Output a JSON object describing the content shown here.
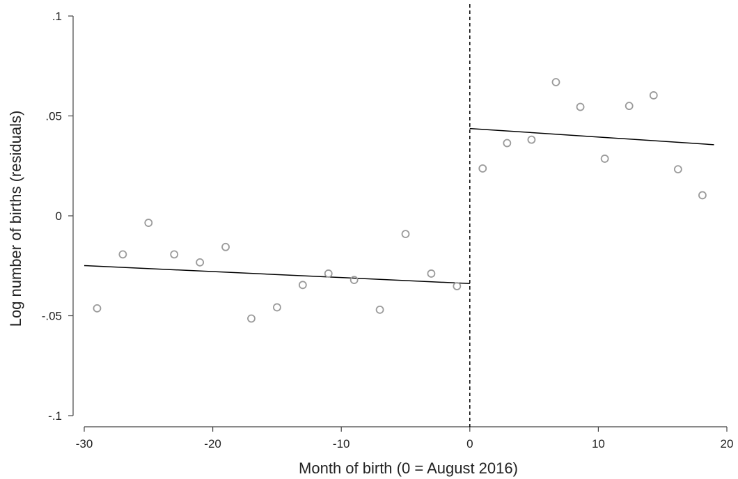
{
  "chart_data": {
    "type": "scatter",
    "title": "",
    "xlabel": "Month of birth (0 = August 2016)",
    "ylabel": "Log number of births (residuals)",
    "xlim": [
      -30,
      20
    ],
    "ylim": [
      -0.1,
      0.1
    ],
    "x_ticks": [
      -30,
      -20,
      -10,
      0,
      10,
      20
    ],
    "x_tick_labels": [
      "-30",
      "-20",
      "-10",
      "0",
      "10",
      "20"
    ],
    "y_ticks": [
      -0.1,
      -0.05,
      0,
      0.05,
      0.1
    ],
    "y_tick_labels": [
      "-.1",
      "-.05",
      "0",
      ".05",
      ".1"
    ],
    "grid": false,
    "cutoff_x": 0,
    "points": [
      {
        "x": -29,
        "y": -0.0463
      },
      {
        "x": -27,
        "y": -0.0193
      },
      {
        "x": -25,
        "y": -0.0035
      },
      {
        "x": -23,
        "y": -0.0193
      },
      {
        "x": -21,
        "y": -0.0233
      },
      {
        "x": -19,
        "y": -0.0156
      },
      {
        "x": -17,
        "y": -0.0514
      },
      {
        "x": -15,
        "y": -0.0458
      },
      {
        "x": -13,
        "y": -0.0346
      },
      {
        "x": -11,
        "y": -0.0289
      },
      {
        "x": -9,
        "y": -0.0321
      },
      {
        "x": -7,
        "y": -0.047
      },
      {
        "x": -5,
        "y": -0.0091
      },
      {
        "x": -3,
        "y": -0.0289
      },
      {
        "x": -1,
        "y": -0.0352
      },
      {
        "x": 1,
        "y": 0.0237
      },
      {
        "x": 2.9,
        "y": 0.0364
      },
      {
        "x": 4.8,
        "y": 0.0381
      },
      {
        "x": 6.7,
        "y": 0.0669
      },
      {
        "x": 8.6,
        "y": 0.0545
      },
      {
        "x": 10.5,
        "y": 0.0286
      },
      {
        "x": 12.4,
        "y": 0.055
      },
      {
        "x": 14.3,
        "y": 0.0603
      },
      {
        "x": 16.2,
        "y": 0.0233
      },
      {
        "x": 18.1,
        "y": 0.0103
      }
    ],
    "fit_lines": [
      {
        "segment": "left",
        "x": [
          -30,
          0
        ],
        "y": [
          -0.0249,
          -0.0339
        ]
      },
      {
        "segment": "right",
        "x": [
          0,
          19
        ],
        "y": [
          0.0437,
          0.0356
        ]
      }
    ]
  }
}
